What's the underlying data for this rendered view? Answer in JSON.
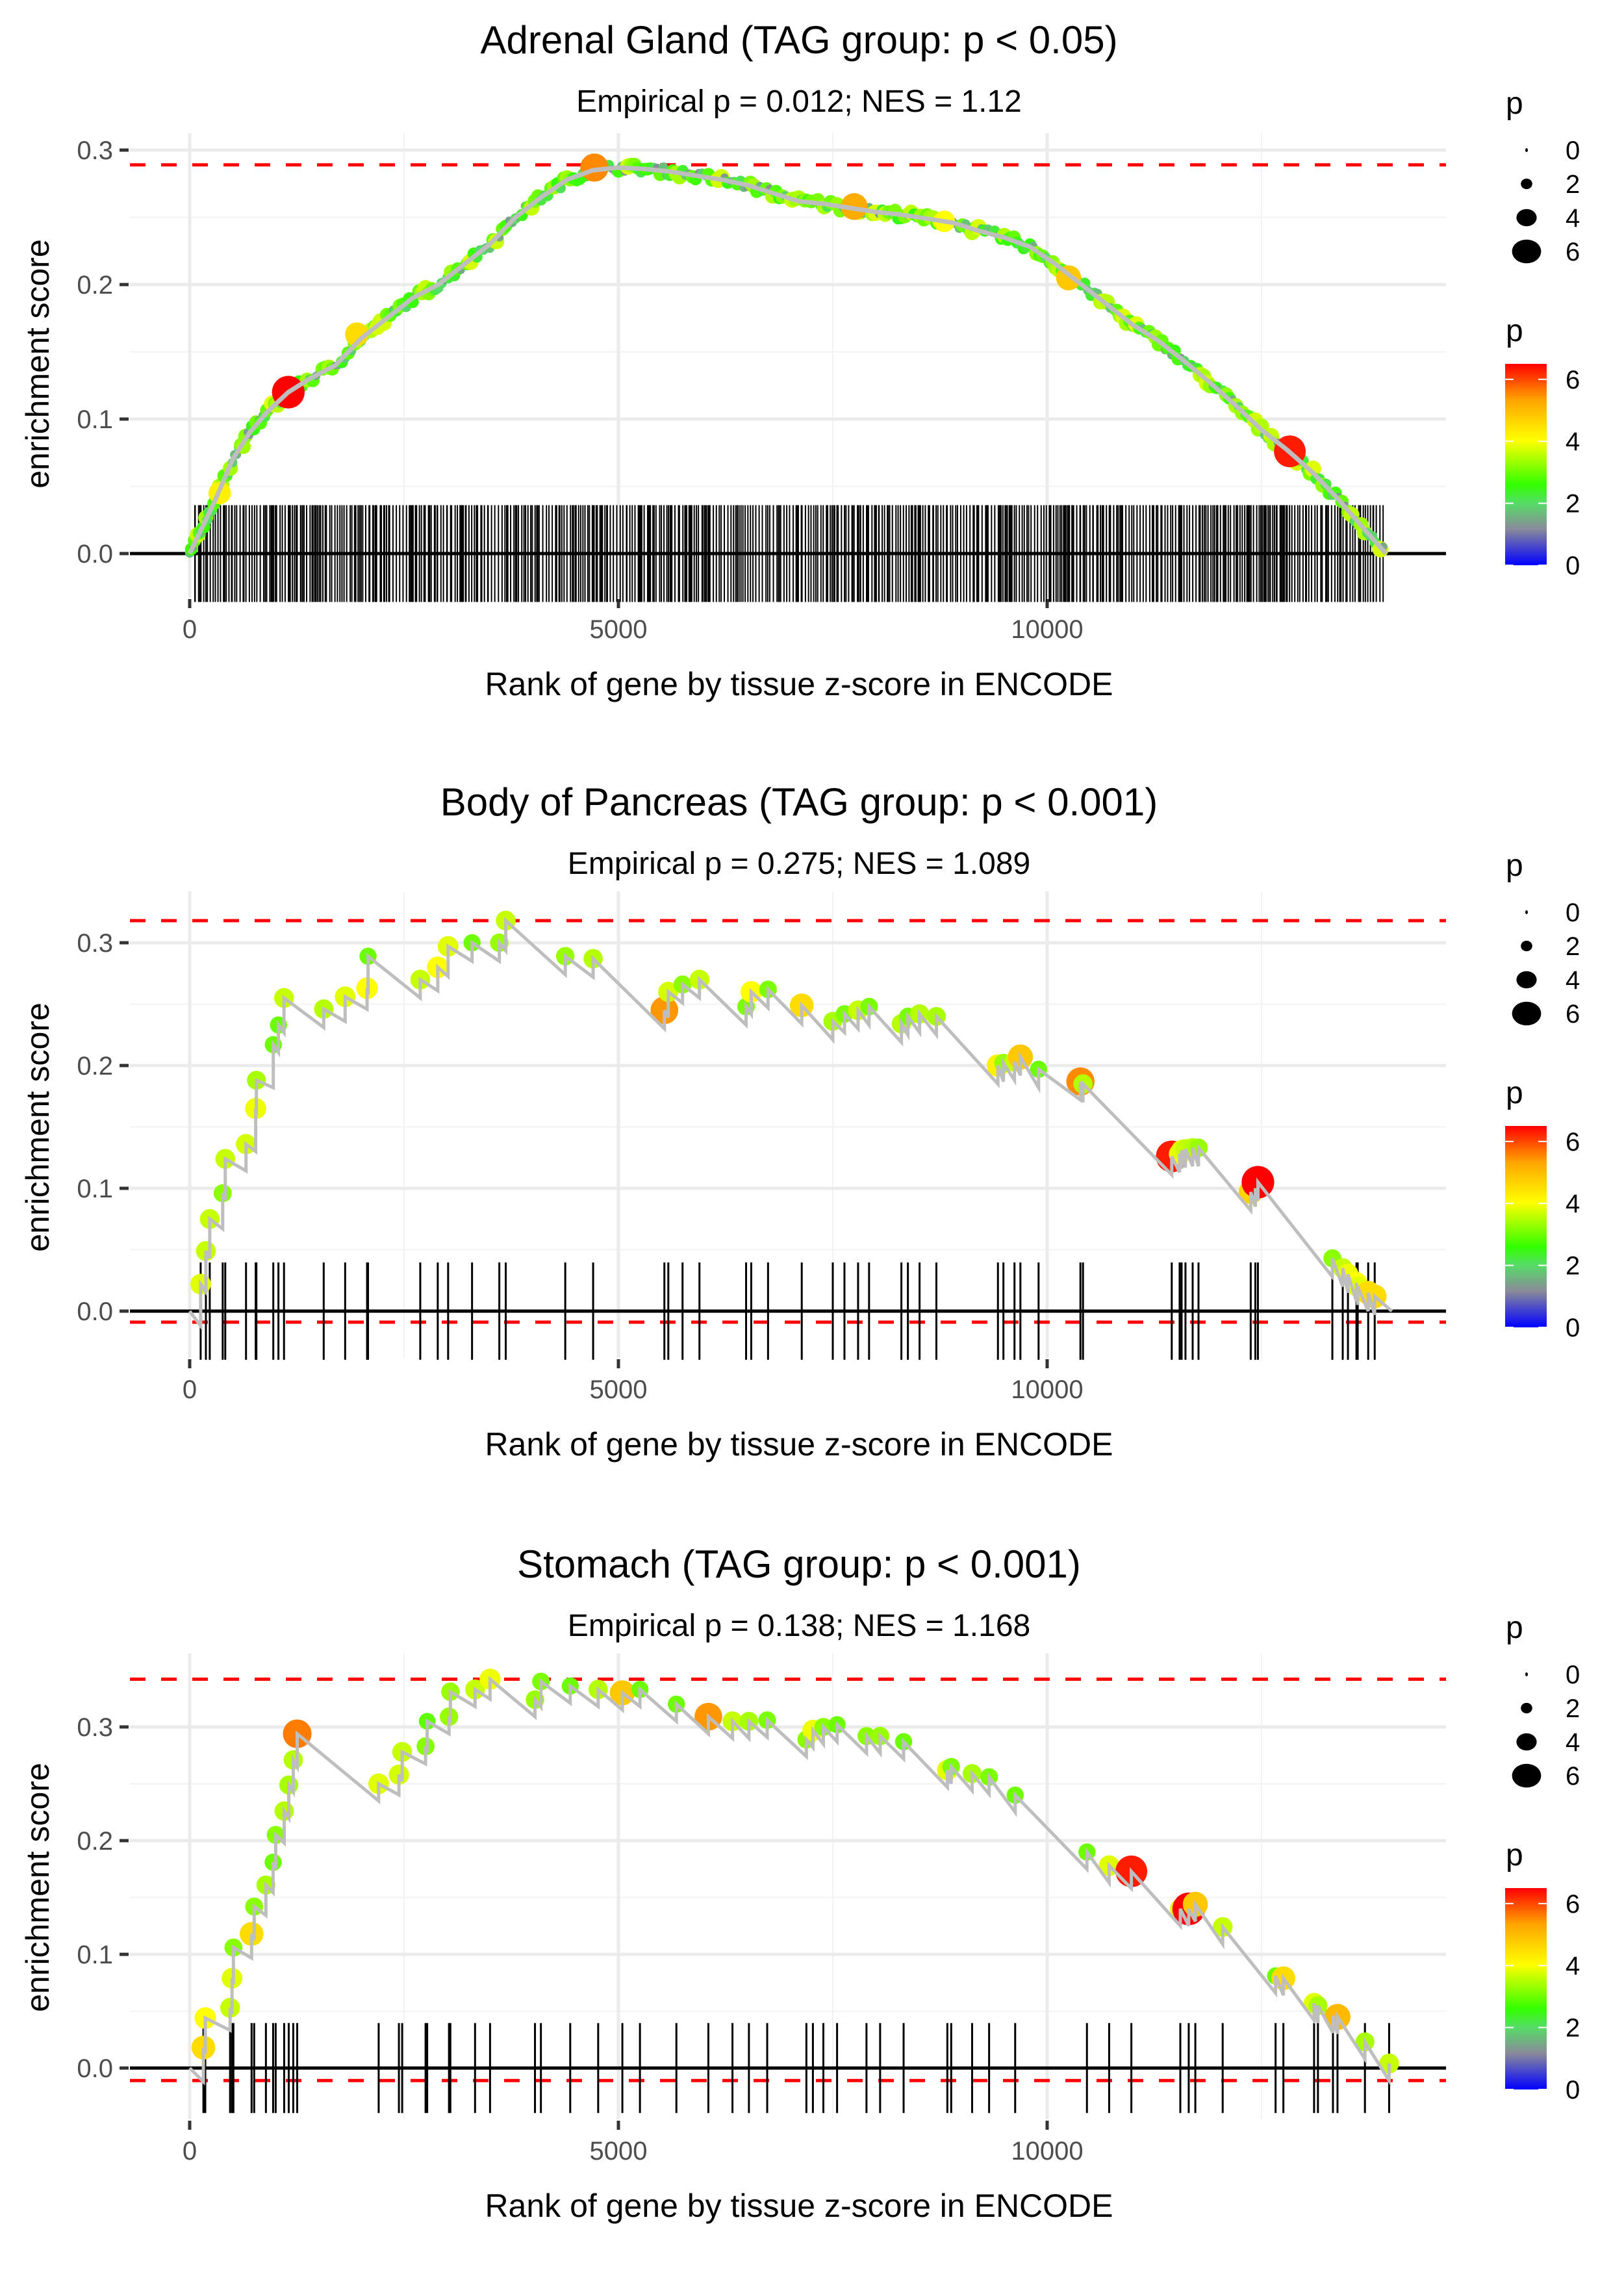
{
  "chart_data": [
    {
      "type": "line",
      "title": "Adrenal Gland (TAG group: p < 0.05)",
      "subtitle": "Empirical p = 0.012; NES = 1.12",
      "xlabel": "Rank of gene by tissue z-score in ENCODE",
      "ylabel": "enrichment score",
      "xlim": [
        -800,
        14900
      ],
      "ylim": [
        -0.025,
        0.305
      ],
      "x_ticks": [
        0,
        5000,
        10000
      ],
      "x_tick_labels": [
        "0",
        "5000",
        "10000"
      ],
      "y_ticks": [
        0.0,
        0.1,
        0.2,
        0.3
      ],
      "y_tick_labels": [
        "0.0",
        "0.1",
        "0.2",
        "0.3"
      ],
      "grid": true,
      "max_es_line": 0.289,
      "min_es_line": 0.0,
      "n_genes": 13950,
      "dense_hits": true,
      "curve": [
        [
          0,
          0.0
        ],
        [
          150,
          0.02
        ],
        [
          300,
          0.04
        ],
        [
          500,
          0.07
        ],
        [
          700,
          0.09
        ],
        [
          900,
          0.105
        ],
        [
          1150,
          0.12
        ],
        [
          1400,
          0.13
        ],
        [
          1700,
          0.14
        ],
        [
          2000,
          0.16
        ],
        [
          2300,
          0.175
        ],
        [
          2600,
          0.19
        ],
        [
          2900,
          0.2
        ],
        [
          3200,
          0.215
        ],
        [
          3500,
          0.23
        ],
        [
          3800,
          0.25
        ],
        [
          4100,
          0.265
        ],
        [
          4400,
          0.278
        ],
        [
          4700,
          0.285
        ],
        [
          5000,
          0.287
        ],
        [
          5300,
          0.286
        ],
        [
          5600,
          0.284
        ],
        [
          5900,
          0.281
        ],
        [
          6200,
          0.278
        ],
        [
          6500,
          0.274
        ],
        [
          6800,
          0.268
        ],
        [
          7100,
          0.262
        ],
        [
          7400,
          0.26
        ],
        [
          7700,
          0.257
        ],
        [
          8000,
          0.254
        ],
        [
          8300,
          0.252
        ],
        [
          8600,
          0.249
        ],
        [
          8900,
          0.246
        ],
        [
          9200,
          0.24
        ],
        [
          9500,
          0.235
        ],
        [
          9800,
          0.228
        ],
        [
          10100,
          0.215
        ],
        [
          10400,
          0.2
        ],
        [
          10700,
          0.185
        ],
        [
          11000,
          0.17
        ],
        [
          11300,
          0.158
        ],
        [
          11600,
          0.143
        ],
        [
          11900,
          0.127
        ],
        [
          12200,
          0.11
        ],
        [
          12500,
          0.092
        ],
        [
          12800,
          0.077
        ],
        [
          13100,
          0.06
        ],
        [
          13400,
          0.04
        ],
        [
          13700,
          0.018
        ],
        [
          13950,
          0.0
        ]
      ],
      "highlight_points": [
        {
          "rank": 1150,
          "es": 0.12,
          "p": 6.5
        },
        {
          "rank": 4720,
          "es": 0.287,
          "p": 5.5
        },
        {
          "rank": 7750,
          "es": 0.258,
          "p": 5.2
        },
        {
          "rank": 10250,
          "es": 0.205,
          "p": 4.8
        },
        {
          "rank": 12830,
          "es": 0.076,
          "p": 6.3
        },
        {
          "rank": 1950,
          "es": 0.163,
          "p": 4.5
        },
        {
          "rank": 8800,
          "es": 0.247,
          "p": 4.0
        },
        {
          "rank": 350,
          "es": 0.045,
          "p": 4.2
        }
      ],
      "legend": {
        "size_title": "p",
        "size_labels": [
          "0",
          "2",
          "4",
          "6"
        ],
        "color_title": "p",
        "color_labels": [
          "6",
          "4",
          "2",
          "0"
        ],
        "color_range": [
          0,
          6.5
        ],
        "color_stops": [
          {
            "value": 0,
            "color": "#0000ff"
          },
          {
            "value": 1.2,
            "color": "#8a8a9a"
          },
          {
            "value": 2.0,
            "color": "#55dd66"
          },
          {
            "value": 2.6,
            "color": "#33ff00"
          },
          {
            "value": 4.0,
            "color": "#ffff00"
          },
          {
            "value": 5.3,
            "color": "#ffa500"
          },
          {
            "value": 6.5,
            "color": "#ff0000"
          }
        ]
      }
    },
    {
      "type": "line",
      "title": "Body of Pancreas (TAG group: p < 0.001)",
      "subtitle": "Empirical p = 0.275; NES = 1.089",
      "xlabel": "Rank of gene by tissue z-score in ENCODE",
      "ylabel": "enrichment score",
      "xlim": [
        -800,
        14900
      ],
      "ylim": [
        -0.022,
        0.335
      ],
      "x_ticks": [
        0,
        5000,
        10000
      ],
      "x_tick_labels": [
        "0",
        "5000",
        "10000"
      ],
      "y_ticks": [
        0.0,
        0.1,
        0.2,
        0.3
      ],
      "y_tick_labels": [
        "0.0",
        "0.1",
        "0.2",
        "0.3"
      ],
      "grid": true,
      "max_es_line": 0.318,
      "min_es_line": -0.009,
      "n_genes": 14020,
      "hits": [
        {
          "rank": 128,
          "es": 0.022,
          "p": 3.8
        },
        {
          "rank": 189,
          "es": 0.049,
          "p": 3.6
        },
        {
          "rank": 234,
          "es": 0.075,
          "p": 3.6
        },
        {
          "rank": 385,
          "es": 0.096,
          "p": 3.2
        },
        {
          "rank": 415,
          "es": 0.124,
          "p": 3.6
        },
        {
          "rank": 657,
          "es": 0.136,
          "p": 3.7
        },
        {
          "rank": 770,
          "es": 0.165,
          "p": 3.9
        },
        {
          "rank": 778,
          "es": 0.188,
          "p": 3.4
        },
        {
          "rank": 975,
          "es": 0.217,
          "p": 3.0
        },
        {
          "rank": 1035,
          "es": 0.233,
          "p": 3.0
        },
        {
          "rank": 1100,
          "es": 0.255,
          "p": 3.6
        },
        {
          "rank": 1563,
          "es": 0.246,
          "p": 3.5
        },
        {
          "rank": 1813,
          "es": 0.256,
          "p": 3.8
        },
        {
          "rank": 2069,
          "es": 0.263,
          "p": 4.0
        },
        {
          "rank": 2080,
          "es": 0.289,
          "p": 3.0
        },
        {
          "rank": 2689,
          "es": 0.27,
          "p": 3.6
        },
        {
          "rank": 2893,
          "es": 0.28,
          "p": 4.0
        },
        {
          "rank": 3014,
          "es": 0.297,
          "p": 3.8
        },
        {
          "rank": 3293,
          "es": 0.3,
          "p": 3.0
        },
        {
          "rank": 3611,
          "es": 0.3,
          "p": 3.3
        },
        {
          "rank": 3686,
          "es": 0.318,
          "p": 3.6
        },
        {
          "rank": 4380,
          "es": 0.289,
          "p": 3.3
        },
        {
          "rank": 4705,
          "es": 0.287,
          "p": 3.5
        },
        {
          "rank": 5536,
          "es": 0.245,
          "p": 5.4
        },
        {
          "rank": 5582,
          "es": 0.26,
          "p": 3.7
        },
        {
          "rank": 5748,
          "es": 0.266,
          "p": 3.2
        },
        {
          "rank": 5945,
          "es": 0.27,
          "p": 3.6
        },
        {
          "rank": 6489,
          "es": 0.248,
          "p": 3.1
        },
        {
          "rank": 6549,
          "es": 0.26,
          "p": 4.0
        },
        {
          "rank": 6745,
          "es": 0.262,
          "p": 3.1
        },
        {
          "rank": 7138,
          "es": 0.249,
          "p": 4.5
        },
        {
          "rank": 7500,
          "es": 0.236,
          "p": 3.4
        },
        {
          "rank": 7636,
          "es": 0.242,
          "p": 3.1
        },
        {
          "rank": 7795,
          "es": 0.245,
          "p": 3.6
        },
        {
          "rank": 7923,
          "es": 0.248,
          "p": 3.1
        },
        {
          "rank": 8300,
          "es": 0.234,
          "p": 3.5
        },
        {
          "rank": 8376,
          "es": 0.24,
          "p": 3.1
        },
        {
          "rank": 8512,
          "es": 0.242,
          "p": 3.5
        },
        {
          "rank": 8708,
          "es": 0.24,
          "p": 3.4
        },
        {
          "rank": 9426,
          "es": 0.2,
          "p": 4.2
        },
        {
          "rank": 9490,
          "es": 0.202,
          "p": 3.3
        },
        {
          "rank": 9619,
          "es": 0.203,
          "p": 3.6
        },
        {
          "rank": 9688,
          "es": 0.207,
          "p": 4.8
        },
        {
          "rank": 9900,
          "es": 0.197,
          "p": 3.0
        },
        {
          "rank": 10388,
          "es": 0.187,
          "p": 5.5
        },
        {
          "rank": 10418,
          "es": 0.185,
          "p": 3.5
        },
        {
          "rank": 11453,
          "es": 0.126,
          "p": 6.3
        },
        {
          "rank": 11545,
          "es": 0.128,
          "p": 4.0
        },
        {
          "rank": 11568,
          "es": 0.131,
          "p": 3.8
        },
        {
          "rank": 11613,
          "es": 0.132,
          "p": 3.6
        },
        {
          "rank": 11697,
          "es": 0.133,
          "p": 3.5
        },
        {
          "rank": 11765,
          "es": 0.133,
          "p": 3.3
        },
        {
          "rank": 12374,
          "es": 0.097,
          "p": 4.6
        },
        {
          "rank": 12428,
          "es": 0.1,
          "p": 4.0
        },
        {
          "rank": 12458,
          "es": 0.105,
          "p": 6.5
        },
        {
          "rank": 13326,
          "es": 0.043,
          "p": 3.2
        },
        {
          "rank": 13447,
          "es": 0.035,
          "p": 3.6
        },
        {
          "rank": 13508,
          "es": 0.03,
          "p": 3.9
        },
        {
          "rank": 13607,
          "es": 0.023,
          "p": 4.0
        },
        {
          "rank": 13622,
          "es": 0.02,
          "p": 3.8
        },
        {
          "rank": 13744,
          "es": 0.015,
          "p": 4.5
        },
        {
          "rank": 13820,
          "es": 0.012,
          "p": 4.5
        }
      ],
      "legend": {
        "size_title": "p",
        "size_labels": [
          "0",
          "2",
          "4",
          "6"
        ],
        "color_title": "p",
        "color_labels": [
          "6",
          "4",
          "2",
          "0"
        ],
        "color_range": [
          0,
          6.5
        ]
      }
    },
    {
      "type": "line",
      "title": "Stomach (TAG group: p < 0.001)",
      "subtitle": "Empirical p = 0.138; NES = 1.168",
      "xlabel": "Rank of gene by tissue z-score in ENCODE",
      "ylabel": "enrichment score",
      "xlim": [
        -800,
        14900
      ],
      "ylim": [
        -0.022,
        0.36
      ],
      "x_ticks": [
        0,
        5000,
        10000
      ],
      "x_tick_labels": [
        "0",
        "5000",
        "10000"
      ],
      "y_ticks": [
        0.0,
        0.1,
        0.2,
        0.3
      ],
      "y_tick_labels": [
        "0.0",
        "0.1",
        "0.2",
        "0.3"
      ],
      "grid": true,
      "max_es_line": 0.342,
      "min_es_line": -0.011,
      "n_genes": 13990,
      "hits": [
        {
          "rank": 160,
          "es": 0.018,
          "p": 4.5
        },
        {
          "rank": 182,
          "es": 0.044,
          "p": 4.0
        },
        {
          "rank": 471,
          "es": 0.053,
          "p": 3.6
        },
        {
          "rank": 494,
          "es": 0.079,
          "p": 3.8
        },
        {
          "rank": 510,
          "es": 0.106,
          "p": 3.2
        },
        {
          "rank": 722,
          "es": 0.118,
          "p": 4.5
        },
        {
          "rank": 752,
          "es": 0.142,
          "p": 3.2
        },
        {
          "rank": 889,
          "es": 0.161,
          "p": 3.4
        },
        {
          "rank": 973,
          "es": 0.181,
          "p": 3.0
        },
        {
          "rank": 1003,
          "es": 0.205,
          "p": 3.2
        },
        {
          "rank": 1102,
          "es": 0.226,
          "p": 3.5
        },
        {
          "rank": 1155,
          "es": 0.249,
          "p": 3.4
        },
        {
          "rank": 1208,
          "es": 0.271,
          "p": 3.5
        },
        {
          "rank": 1254,
          "es": 0.294,
          "p": 5.6
        },
        {
          "rank": 2204,
          "es": 0.25,
          "p": 3.8
        },
        {
          "rank": 2440,
          "es": 0.258,
          "p": 3.7
        },
        {
          "rank": 2478,
          "es": 0.278,
          "p": 3.6
        },
        {
          "rank": 2751,
          "es": 0.283,
          "p": 3.2
        },
        {
          "rank": 2770,
          "es": 0.305,
          "p": 2.9
        },
        {
          "rank": 3024,
          "es": 0.309,
          "p": 3.3
        },
        {
          "rank": 3040,
          "es": 0.331,
          "p": 3.3
        },
        {
          "rank": 3328,
          "es": 0.333,
          "p": 3.6
        },
        {
          "rank": 3503,
          "es": 0.342,
          "p": 3.9
        },
        {
          "rank": 4027,
          "es": 0.324,
          "p": 3.3
        },
        {
          "rank": 4096,
          "es": 0.34,
          "p": 3.1
        },
        {
          "rank": 4438,
          "es": 0.336,
          "p": 3.0
        },
        {
          "rank": 4764,
          "es": 0.333,
          "p": 3.5
        },
        {
          "rank": 5046,
          "es": 0.33,
          "p": 4.8
        },
        {
          "rank": 5251,
          "es": 0.333,
          "p": 3.0
        },
        {
          "rank": 5676,
          "es": 0.32,
          "p": 3.0
        },
        {
          "rank": 6049,
          "es": 0.309,
          "p": 5.4
        },
        {
          "rank": 6330,
          "es": 0.305,
          "p": 3.6
        },
        {
          "rank": 6522,
          "es": 0.305,
          "p": 3.4
        },
        {
          "rank": 6735,
          "es": 0.306,
          "p": 3.1
        },
        {
          "rank": 7192,
          "es": 0.289,
          "p": 3.2
        },
        {
          "rank": 7268,
          "es": 0.297,
          "p": 3.9
        },
        {
          "rank": 7390,
          "es": 0.3,
          "p": 3.2
        },
        {
          "rank": 7550,
          "es": 0.302,
          "p": 3.0
        },
        {
          "rank": 7893,
          "es": 0.292,
          "p": 3.2
        },
        {
          "rank": 8052,
          "es": 0.292,
          "p": 3.3
        },
        {
          "rank": 8326,
          "es": 0.287,
          "p": 3.0
        },
        {
          "rank": 8836,
          "es": 0.262,
          "p": 3.8
        },
        {
          "rank": 8881,
          "es": 0.265,
          "p": 3.1
        },
        {
          "rank": 9125,
          "es": 0.259,
          "p": 3.4
        },
        {
          "rank": 9323,
          "es": 0.256,
          "p": 3.1
        },
        {
          "rank": 9627,
          "es": 0.24,
          "p": 3.0
        },
        {
          "rank": 10464,
          "es": 0.19,
          "p": 3.0
        },
        {
          "rank": 10723,
          "es": 0.178,
          "p": 3.8
        },
        {
          "rank": 10982,
          "es": 0.173,
          "p": 6.3
        },
        {
          "rank": 11553,
          "es": 0.14,
          "p": 3.8
        },
        {
          "rank": 11651,
          "es": 0.14,
          "p": 6.5
        },
        {
          "rank": 11728,
          "es": 0.144,
          "p": 4.8
        },
        {
          "rank": 12047,
          "es": 0.124,
          "p": 3.6
        },
        {
          "rank": 12664,
          "es": 0.081,
          "p": 3.0
        },
        {
          "rank": 12755,
          "es": 0.079,
          "p": 4.5
        },
        {
          "rank": 13113,
          "es": 0.057,
          "p": 3.8
        },
        {
          "rank": 13158,
          "es": 0.055,
          "p": 3.4
        },
        {
          "rank": 13333,
          "es": 0.046,
          "p": 3.1
        },
        {
          "rank": 13386,
          "es": 0.045,
          "p": 5.0
        },
        {
          "rank": 13706,
          "es": 0.023,
          "p": 3.4
        },
        {
          "rank": 13988,
          "es": 0.004,
          "p": 3.6
        }
      ],
      "legend": {
        "size_title": "p",
        "size_labels": [
          "0",
          "2",
          "4",
          "6"
        ],
        "color_title": "p",
        "color_labels": [
          "6",
          "4",
          "2",
          "0"
        ],
        "color_range": [
          0,
          6.5
        ]
      }
    }
  ]
}
